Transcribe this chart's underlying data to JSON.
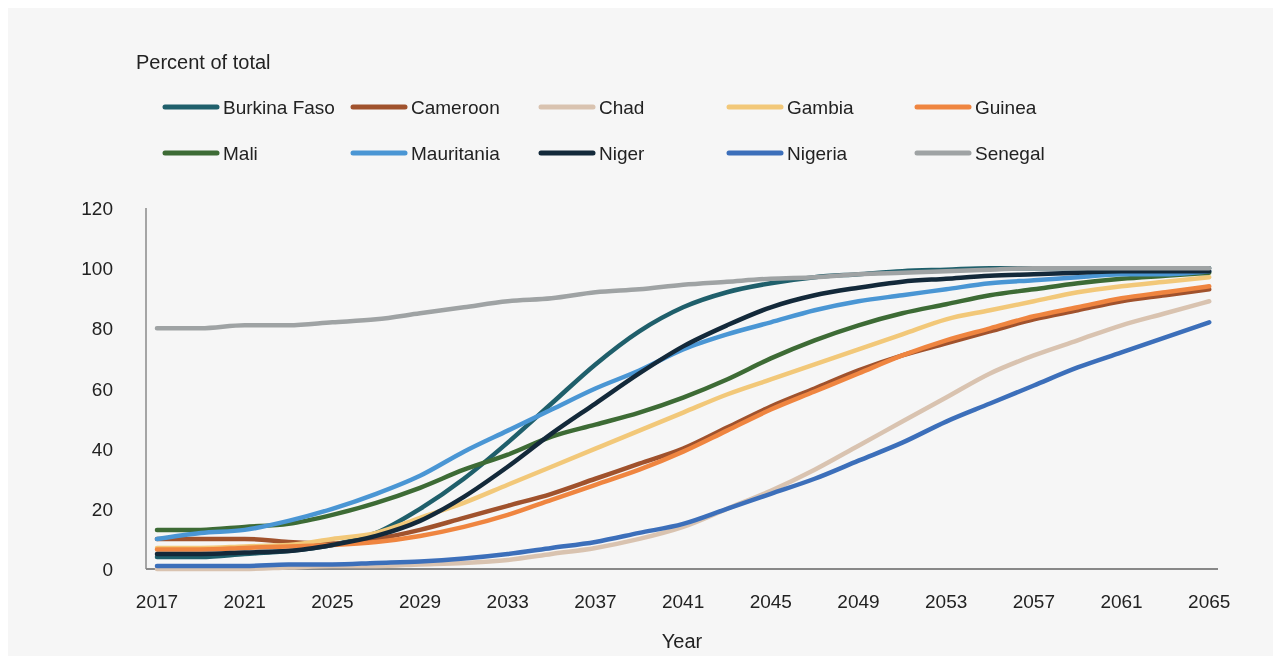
{
  "chart_data": {
    "type": "line",
    "annotations": [
      "Percent of total"
    ],
    "xlabel": "Year",
    "x": [
      2017,
      2019,
      2021,
      2023,
      2025,
      2027,
      2029,
      2031,
      2033,
      2035,
      2037,
      2039,
      2041,
      2043,
      2045,
      2047,
      2049,
      2051,
      2053,
      2055,
      2057,
      2059,
      2061,
      2063,
      2065
    ],
    "xlim": [
      2016.5,
      2065.4
    ],
    "xticks": [
      2017,
      2021,
      2025,
      2029,
      2033,
      2037,
      2041,
      2045,
      2049,
      2053,
      2057,
      2061,
      2065
    ],
    "ylim": [
      0,
      120
    ],
    "yticks": [
      0,
      20,
      40,
      60,
      80,
      100,
      120
    ],
    "grid": false,
    "legend": "top",
    "marker": "none",
    "line_style": "solid",
    "series": [
      {
        "name": "Burkina Faso",
        "color": "#1f5f6b",
        "values": [
          4,
          4,
          5,
          6,
          8,
          12,
          20,
          30,
          42,
          55,
          68,
          79,
          87,
          92,
          95,
          97,
          98,
          99,
          99.5,
          100,
          100,
          100,
          100,
          100,
          100
        ]
      },
      {
        "name": "Cameroon",
        "color": "#a0522d",
        "values": [
          10,
          10,
          10,
          9,
          8.5,
          10,
          13,
          17,
          21,
          25,
          30,
          35,
          40,
          47,
          54,
          60,
          66,
          71,
          75,
          79,
          83,
          86,
          89,
          91,
          93
        ]
      },
      {
        "name": "Chad",
        "color": "#d9c3b0",
        "values": [
          0,
          0,
          0,
          0.5,
          1,
          1,
          1.5,
          2,
          3,
          5,
          7,
          10,
          14,
          20,
          26,
          33,
          41,
          49,
          57,
          65,
          71,
          76,
          81,
          85,
          89
        ]
      },
      {
        "name": "Gambia",
        "color": "#f2c879",
        "values": [
          7,
          7,
          7.5,
          8,
          10,
          12,
          17,
          22,
          28,
          34,
          40,
          46,
          52,
          58,
          63,
          68,
          73,
          78,
          83,
          86,
          89,
          92,
          94,
          95.5,
          97
        ]
      },
      {
        "name": "Guinea",
        "color": "#ef8540",
        "values": [
          6.5,
          6.5,
          7,
          7.5,
          8,
          9,
          11,
          14,
          18,
          23,
          28,
          33,
          39,
          46,
          53,
          59,
          65,
          71,
          76,
          80,
          84,
          87,
          90,
          92,
          94
        ]
      },
      {
        "name": "Mali",
        "color": "#3d6b35",
        "values": [
          13,
          13,
          14,
          15,
          18,
          22,
          27,
          33,
          38,
          44,
          48,
          52,
          57,
          63,
          70,
          76,
          81,
          85,
          88,
          91,
          93,
          95,
          96.5,
          97.5,
          98.5
        ]
      },
      {
        "name": "Mauritania",
        "color": "#4a96d4",
        "values": [
          10,
          12,
          13,
          16,
          20,
          25,
          31,
          39,
          46,
          53,
          60,
          66,
          73,
          78,
          82,
          86,
          89,
          91,
          93,
          95,
          96,
          97,
          98,
          98,
          99
        ]
      },
      {
        "name": "Niger",
        "color": "#13293a",
        "values": [
          5,
          5,
          5.5,
          6,
          8,
          11,
          16,
          24,
          34,
          45,
          55,
          65,
          74,
          81,
          87,
          91,
          93.5,
          95.5,
          96.5,
          97.5,
          98,
          98.5,
          99,
          99,
          99
        ]
      },
      {
        "name": "Nigeria",
        "color": "#3c6fba",
        "values": [
          1,
          1,
          1,
          1.5,
          1.5,
          2,
          2.5,
          3.5,
          5,
          7,
          9,
          12,
          15,
          20,
          25,
          30,
          36,
          42,
          49,
          55,
          61,
          67,
          72,
          77,
          82
        ]
      },
      {
        "name": "Senegal",
        "color": "#9fa3a4",
        "values": [
          80,
          80,
          81,
          81,
          82,
          83,
          85,
          87,
          89,
          90,
          92,
          93,
          94.5,
          95.5,
          96.5,
          97,
          98,
          98.5,
          99,
          99.5,
          100,
          100,
          100,
          100,
          100
        ]
      }
    ]
  }
}
